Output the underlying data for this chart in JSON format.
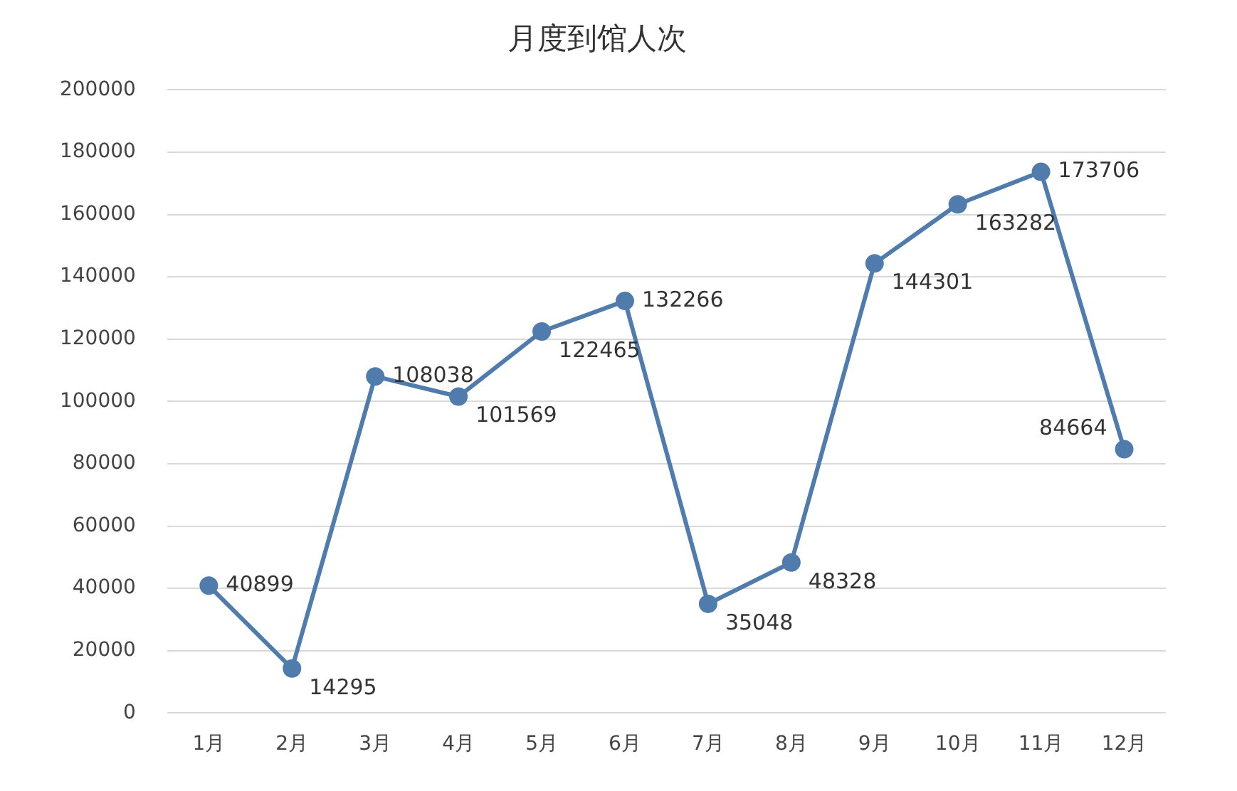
{
  "chart_data": {
    "type": "line",
    "title": "月度到馆人次",
    "categories": [
      "1月",
      "2月",
      "3月",
      "4月",
      "5月",
      "6月",
      "7月",
      "8月",
      "9月",
      "10月",
      "11月",
      "12月"
    ],
    "series": [
      {
        "color": "#4f7cac",
        "values": [
          40899,
          14295,
          108038,
          101569,
          122465,
          132266,
          35048,
          48328,
          144301,
          163282,
          173706,
          84664
        ]
      }
    ],
    "ylim": [
      0,
      200000
    ],
    "yticks": [
      0,
      20000,
      40000,
      60000,
      80000,
      100000,
      120000,
      140000,
      160000,
      180000,
      200000
    ],
    "grid": "y",
    "legend": false,
    "marker": "circle",
    "line_style": "solid",
    "data_labels": true
  }
}
